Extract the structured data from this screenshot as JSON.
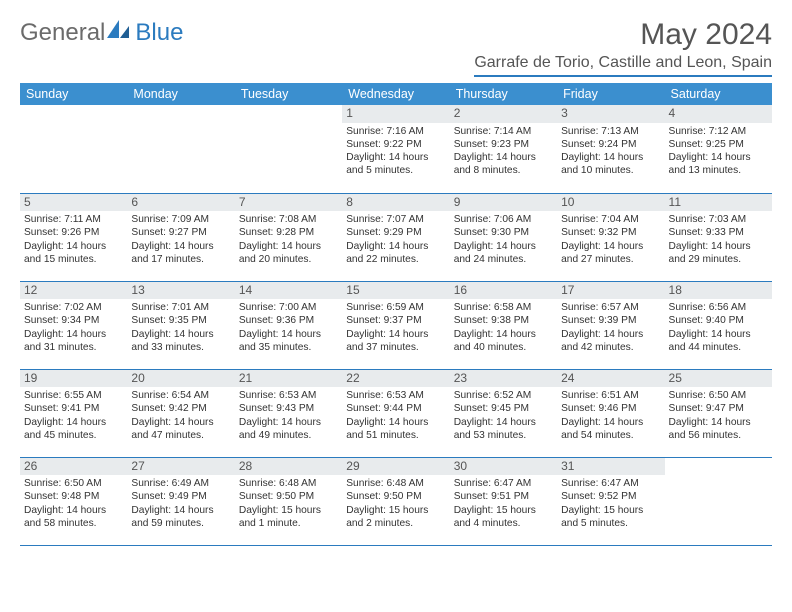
{
  "brand": {
    "text1": "General",
    "text2": "Blue"
  },
  "title": "May 2024",
  "location": "Garrafe de Torio, Castille and Leon, Spain",
  "weekdays": [
    "Sunday",
    "Monday",
    "Tuesday",
    "Wednesday",
    "Thursday",
    "Friday",
    "Saturday"
  ],
  "colors": {
    "header_bg": "#3b8fcf",
    "header_text": "#ffffff",
    "rule": "#2b7bbf",
    "daynum_bg": "#e8ebed",
    "title_color": "#555555",
    "logo_gray": "#6b6b6b",
    "logo_blue": "#2b7bbf"
  },
  "cells": [
    [
      null,
      null,
      null,
      {
        "n": "1",
        "sr": "7:16 AM",
        "ss": "9:22 PM",
        "dl": "14 hours and 5 minutes."
      },
      {
        "n": "2",
        "sr": "7:14 AM",
        "ss": "9:23 PM",
        "dl": "14 hours and 8 minutes."
      },
      {
        "n": "3",
        "sr": "7:13 AM",
        "ss": "9:24 PM",
        "dl": "14 hours and 10 minutes."
      },
      {
        "n": "4",
        "sr": "7:12 AM",
        "ss": "9:25 PM",
        "dl": "14 hours and 13 minutes."
      }
    ],
    [
      {
        "n": "5",
        "sr": "7:11 AM",
        "ss": "9:26 PM",
        "dl": "14 hours and 15 minutes."
      },
      {
        "n": "6",
        "sr": "7:09 AM",
        "ss": "9:27 PM",
        "dl": "14 hours and 17 minutes."
      },
      {
        "n": "7",
        "sr": "7:08 AM",
        "ss": "9:28 PM",
        "dl": "14 hours and 20 minutes."
      },
      {
        "n": "8",
        "sr": "7:07 AM",
        "ss": "9:29 PM",
        "dl": "14 hours and 22 minutes."
      },
      {
        "n": "9",
        "sr": "7:06 AM",
        "ss": "9:30 PM",
        "dl": "14 hours and 24 minutes."
      },
      {
        "n": "10",
        "sr": "7:04 AM",
        "ss": "9:32 PM",
        "dl": "14 hours and 27 minutes."
      },
      {
        "n": "11",
        "sr": "7:03 AM",
        "ss": "9:33 PM",
        "dl": "14 hours and 29 minutes."
      }
    ],
    [
      {
        "n": "12",
        "sr": "7:02 AM",
        "ss": "9:34 PM",
        "dl": "14 hours and 31 minutes."
      },
      {
        "n": "13",
        "sr": "7:01 AM",
        "ss": "9:35 PM",
        "dl": "14 hours and 33 minutes."
      },
      {
        "n": "14",
        "sr": "7:00 AM",
        "ss": "9:36 PM",
        "dl": "14 hours and 35 minutes."
      },
      {
        "n": "15",
        "sr": "6:59 AM",
        "ss": "9:37 PM",
        "dl": "14 hours and 37 minutes."
      },
      {
        "n": "16",
        "sr": "6:58 AM",
        "ss": "9:38 PM",
        "dl": "14 hours and 40 minutes."
      },
      {
        "n": "17",
        "sr": "6:57 AM",
        "ss": "9:39 PM",
        "dl": "14 hours and 42 minutes."
      },
      {
        "n": "18",
        "sr": "6:56 AM",
        "ss": "9:40 PM",
        "dl": "14 hours and 44 minutes."
      }
    ],
    [
      {
        "n": "19",
        "sr": "6:55 AM",
        "ss": "9:41 PM",
        "dl": "14 hours and 45 minutes."
      },
      {
        "n": "20",
        "sr": "6:54 AM",
        "ss": "9:42 PM",
        "dl": "14 hours and 47 minutes."
      },
      {
        "n": "21",
        "sr": "6:53 AM",
        "ss": "9:43 PM",
        "dl": "14 hours and 49 minutes."
      },
      {
        "n": "22",
        "sr": "6:53 AM",
        "ss": "9:44 PM",
        "dl": "14 hours and 51 minutes."
      },
      {
        "n": "23",
        "sr": "6:52 AM",
        "ss": "9:45 PM",
        "dl": "14 hours and 53 minutes."
      },
      {
        "n": "24",
        "sr": "6:51 AM",
        "ss": "9:46 PM",
        "dl": "14 hours and 54 minutes."
      },
      {
        "n": "25",
        "sr": "6:50 AM",
        "ss": "9:47 PM",
        "dl": "14 hours and 56 minutes."
      }
    ],
    [
      {
        "n": "26",
        "sr": "6:50 AM",
        "ss": "9:48 PM",
        "dl": "14 hours and 58 minutes."
      },
      {
        "n": "27",
        "sr": "6:49 AM",
        "ss": "9:49 PM",
        "dl": "14 hours and 59 minutes."
      },
      {
        "n": "28",
        "sr": "6:48 AM",
        "ss": "9:50 PM",
        "dl": "15 hours and 1 minute."
      },
      {
        "n": "29",
        "sr": "6:48 AM",
        "ss": "9:50 PM",
        "dl": "15 hours and 2 minutes."
      },
      {
        "n": "30",
        "sr": "6:47 AM",
        "ss": "9:51 PM",
        "dl": "15 hours and 4 minutes."
      },
      {
        "n": "31",
        "sr": "6:47 AM",
        "ss": "9:52 PM",
        "dl": "15 hours and 5 minutes."
      },
      null
    ]
  ],
  "labels": {
    "sunrise": "Sunrise:",
    "sunset": "Sunset:",
    "daylight": "Daylight:"
  }
}
